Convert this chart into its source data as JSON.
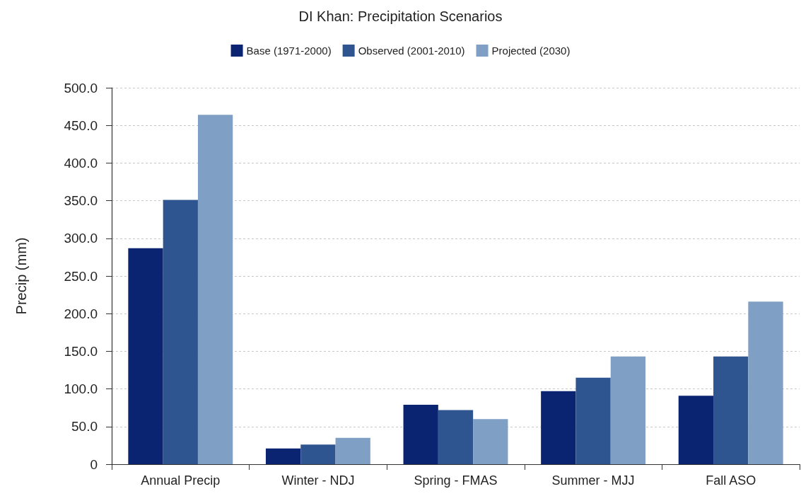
{
  "chart_data": {
    "type": "bar",
    "title": "DI Khan: Precipitation Scenarios",
    "ylabel": "Precip (mm)",
    "categories": [
      "Annual Precip",
      "Winter - NDJ",
      "Spring - FMAS",
      "Summer - MJJ",
      "Fall ASO"
    ],
    "series": [
      {
        "name": "Base (1971-2000)",
        "color": "#0b2471",
        "values": [
          287,
          21,
          79,
          97,
          91
        ]
      },
      {
        "name": "Observed (2001-2010)",
        "color": "#2f5590",
        "values": [
          351,
          26,
          72,
          115,
          143
        ]
      },
      {
        "name": "Projected (2030)",
        "color": "#7f9fc4",
        "values": [
          464,
          35,
          60,
          143,
          216
        ]
      }
    ],
    "ylim": [
      0,
      500
    ],
    "yticks": [
      0,
      {
        "value": 50,
        "label": "50.0"
      },
      {
        "value": 100,
        "label": "100.0"
      },
      {
        "value": 150,
        "label": "150.0"
      },
      {
        "value": 200,
        "label": "200.0"
      },
      {
        "value": 250,
        "label": "250.0"
      },
      {
        "value": 300,
        "label": "300.0"
      },
      {
        "value": 350,
        "label": "350.0"
      },
      {
        "value": 400,
        "label": "400.0"
      },
      {
        "value": 450,
        "label": "450.0"
      },
      {
        "value": 500,
        "label": "500.0"
      }
    ],
    "grid": "y",
    "legend": "top"
  }
}
